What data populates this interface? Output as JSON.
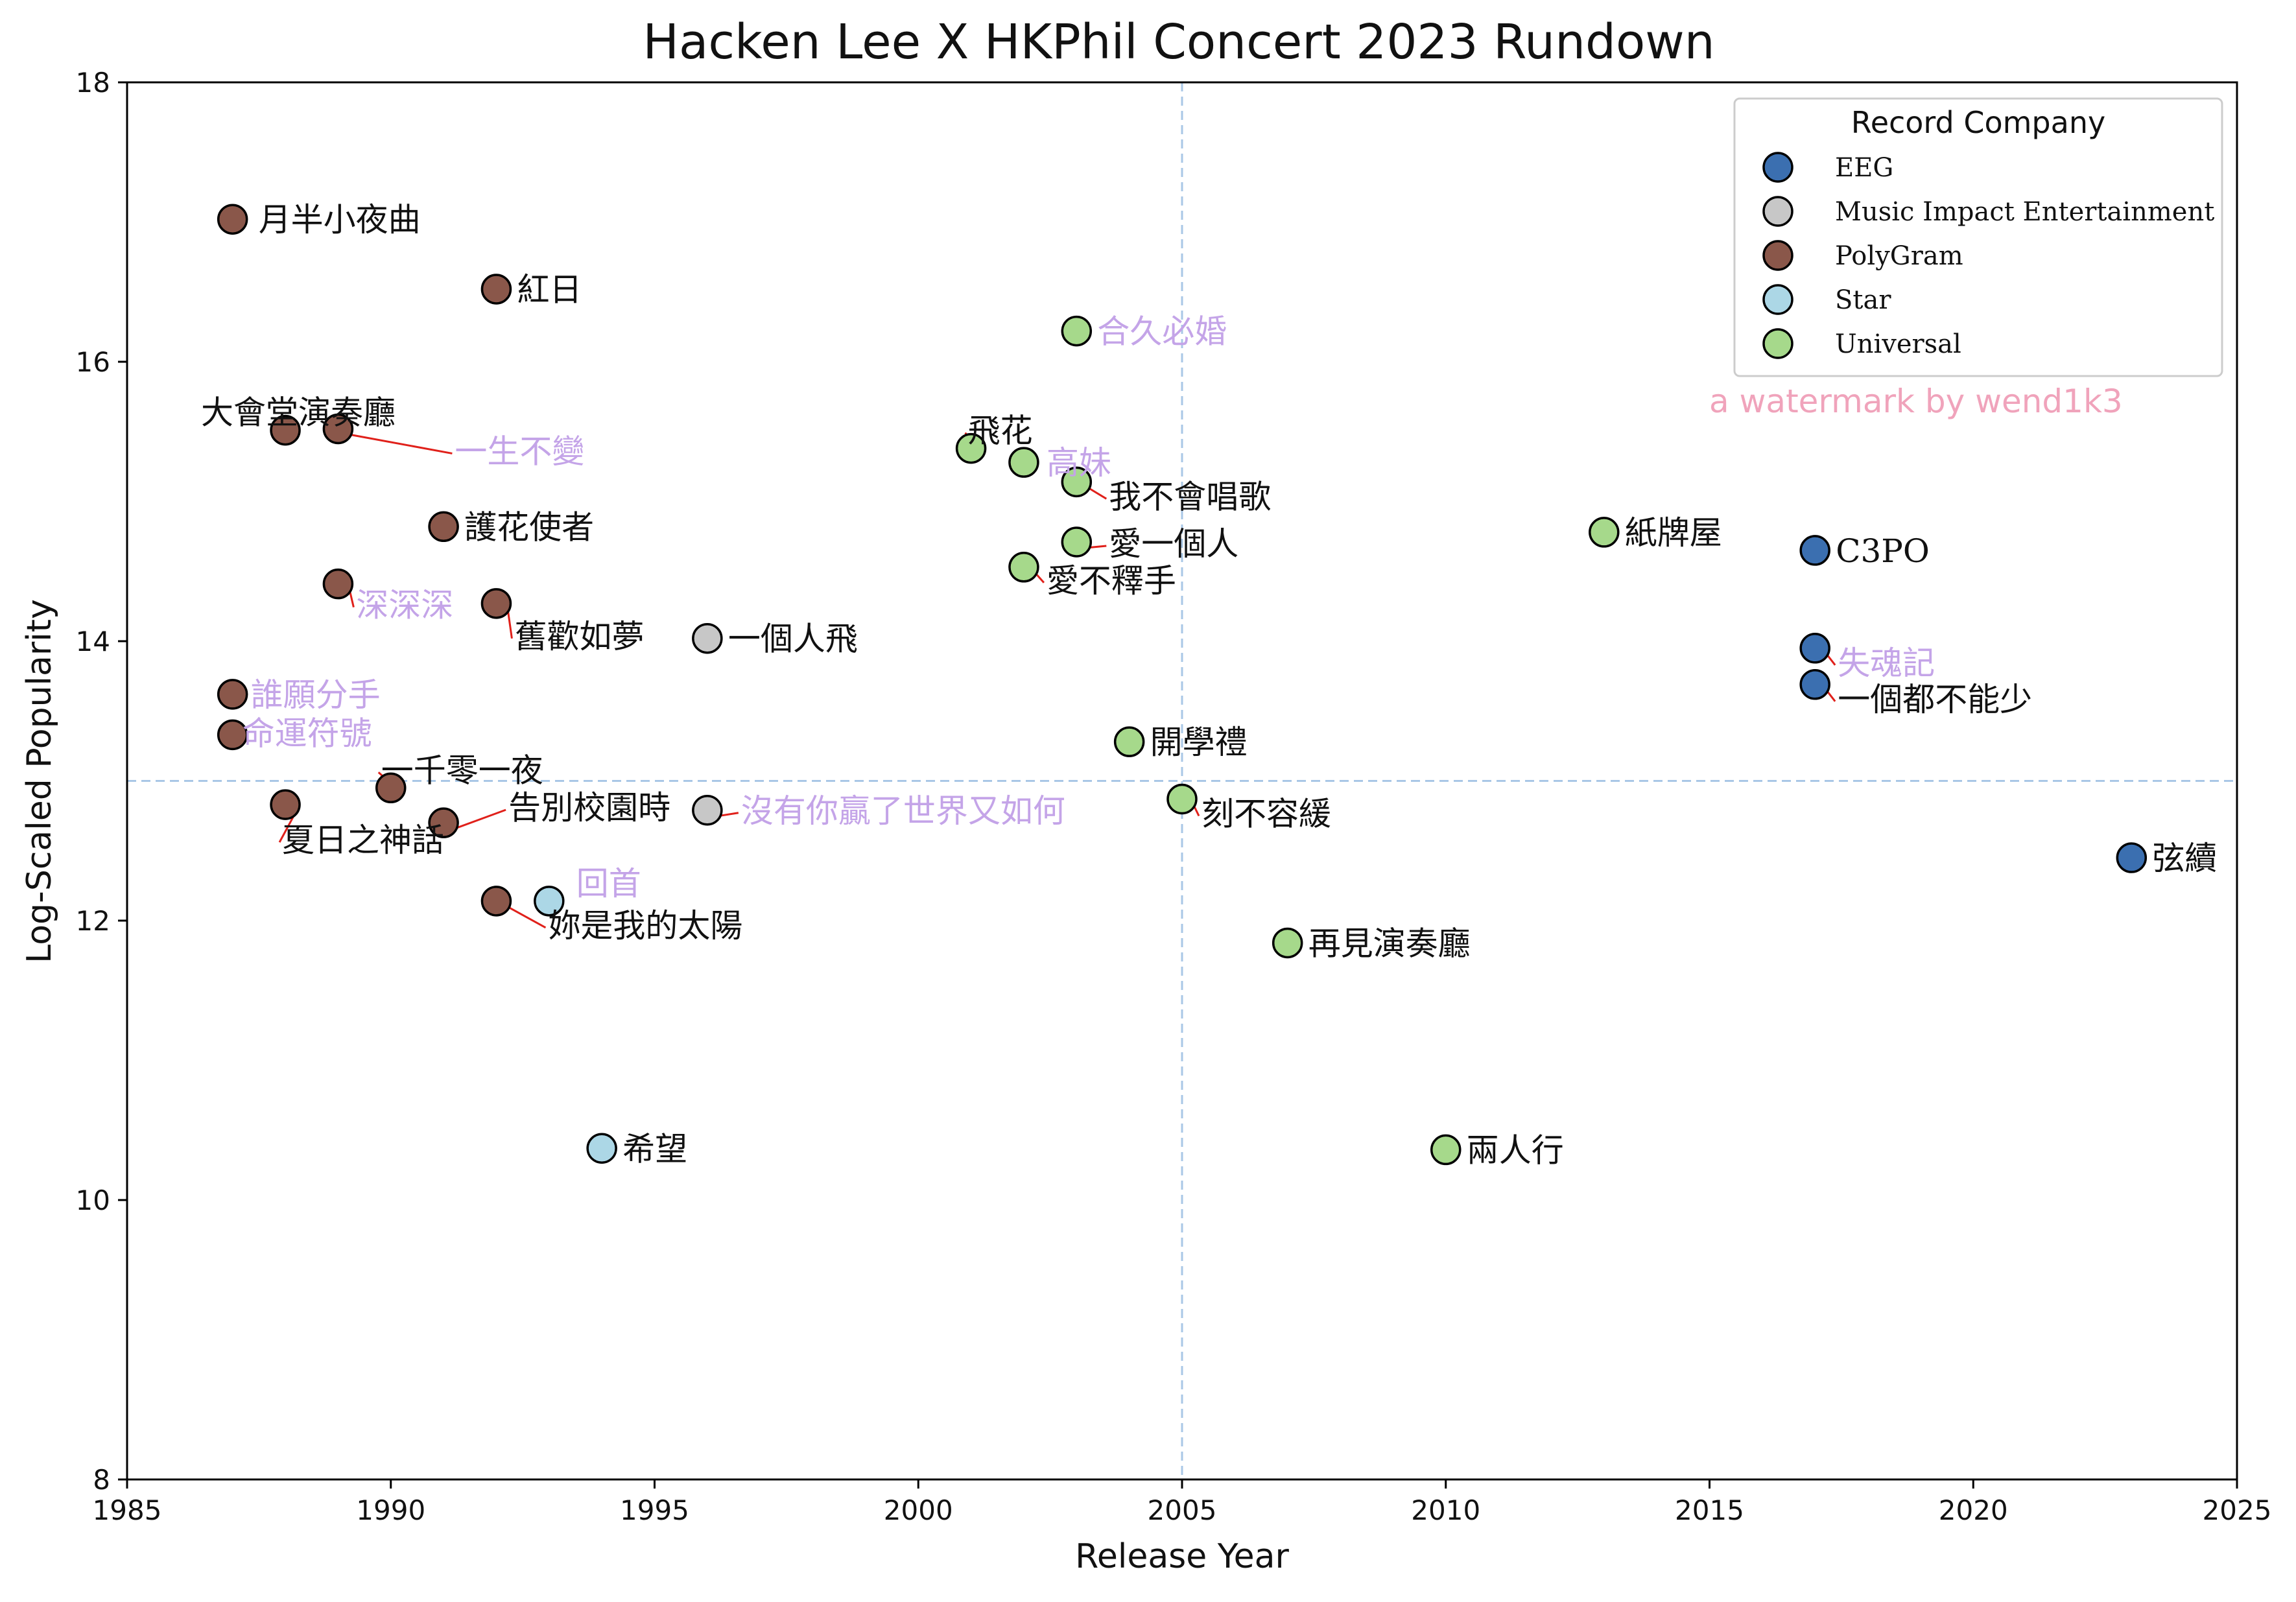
{
  "chart_data": {
    "type": "scatter",
    "title": "Hacken Lee X HKPhil Concert 2023 Rundown",
    "xlabel": "Release Year",
    "ylabel": "Log-Scaled Popularity",
    "xlim": [
      1985,
      2025
    ],
    "ylim": [
      8,
      18
    ],
    "xticks": [
      "1985",
      "1990",
      "1995",
      "2000",
      "2005",
      "2010",
      "2015",
      "2020",
      "2025"
    ],
    "yticks": [
      "8",
      "10",
      "12",
      "14",
      "16",
      "18"
    ],
    "reference_lines": {
      "x": 2005,
      "y": 13
    },
    "grid": false,
    "legend": {
      "title": "Record Company",
      "placement": "top-right",
      "entries": [
        "EEG",
        "Music Impact Entertainment",
        "PolyGram",
        "Star",
        "Universal"
      ]
    },
    "colors": {
      "EEG": "#3b6fb0",
      "Music Impact Entertainment": "#c7c7c7",
      "PolyGram": "#8a574a",
      "Star": "#acd7e6",
      "Universal": "#a6d98b",
      "label_default": "#111111",
      "label_highlight": "#c4a4e8",
      "connector": "#e0201a",
      "reference_line": "#a9c7e6",
      "watermark": "#f0a3bb"
    },
    "points": [
      {
        "song": "月半小夜曲",
        "year": 1987,
        "popularity": 17.02,
        "company": "PolyGram",
        "highlight": false
      },
      {
        "song": "紅日",
        "year": 1992,
        "popularity": 16.52,
        "company": "PolyGram",
        "highlight": false
      },
      {
        "song": "大會堂演奏廳",
        "year": 1988,
        "popularity": 15.51,
        "company": "PolyGram",
        "highlight": false
      },
      {
        "song": "一生不變",
        "year": 1989,
        "popularity": 15.52,
        "company": "PolyGram",
        "highlight": true
      },
      {
        "song": "護花使者",
        "year": 1991,
        "popularity": 14.82,
        "company": "PolyGram",
        "highlight": false
      },
      {
        "song": "深深深",
        "year": 1989,
        "popularity": 14.41,
        "company": "PolyGram",
        "highlight": true
      },
      {
        "song": "舊歡如夢",
        "year": 1992,
        "popularity": 14.27,
        "company": "PolyGram",
        "highlight": false
      },
      {
        "song": "誰願分手",
        "year": 1987,
        "popularity": 13.62,
        "company": "PolyGram",
        "highlight": true
      },
      {
        "song": "命運符號",
        "year": 1987,
        "popularity": 13.33,
        "company": "PolyGram",
        "highlight": true
      },
      {
        "song": "一千零一夜",
        "year": 1990,
        "popularity": 12.95,
        "company": "PolyGram",
        "highlight": false
      },
      {
        "song": "夏日之神話",
        "year": 1988,
        "popularity": 12.83,
        "company": "PolyGram",
        "highlight": false
      },
      {
        "song": "告別校園時",
        "year": 1991,
        "popularity": 12.7,
        "company": "PolyGram",
        "highlight": false
      },
      {
        "song": "妳是我的太陽",
        "year": 1992,
        "popularity": 12.14,
        "company": "PolyGram",
        "highlight": false
      },
      {
        "song": "回首",
        "year": 1993,
        "popularity": 12.14,
        "company": "Star",
        "highlight": true
      },
      {
        "song": "希望",
        "year": 1994,
        "popularity": 10.37,
        "company": "Star",
        "highlight": false
      },
      {
        "song": "一個人飛",
        "year": 1996,
        "popularity": 14.02,
        "company": "Music Impact Entertainment",
        "highlight": false
      },
      {
        "song": "沒有你贏了世界又如何",
        "year": 1996,
        "popularity": 12.79,
        "company": "Music Impact Entertainment",
        "highlight": true
      },
      {
        "song": "飛花",
        "year": 2001,
        "popularity": 15.38,
        "company": "Universal",
        "highlight": false
      },
      {
        "song": "高妹",
        "year": 2002,
        "popularity": 15.28,
        "company": "Universal",
        "highlight": true
      },
      {
        "song": "合久必婚",
        "year": 2003,
        "popularity": 16.22,
        "company": "Universal",
        "highlight": true
      },
      {
        "song": "我不會唱歌",
        "year": 2003,
        "popularity": 15.14,
        "company": "Universal",
        "highlight": false
      },
      {
        "song": "愛一個人",
        "year": 2003,
        "popularity": 14.71,
        "company": "Universal",
        "highlight": false
      },
      {
        "song": "愛不釋手",
        "year": 2002,
        "popularity": 14.53,
        "company": "Universal",
        "highlight": false
      },
      {
        "song": "開學禮",
        "year": 2004,
        "popularity": 13.28,
        "company": "Universal",
        "highlight": false
      },
      {
        "song": "刻不容緩",
        "year": 2005,
        "popularity": 12.87,
        "company": "Universal",
        "highlight": false
      },
      {
        "song": "再見演奏廳",
        "year": 2007,
        "popularity": 11.84,
        "company": "Universal",
        "highlight": false
      },
      {
        "song": "紙牌屋",
        "year": 2013,
        "popularity": 14.78,
        "company": "Universal",
        "highlight": false
      },
      {
        "song": "兩人行",
        "year": 2010,
        "popularity": 10.36,
        "company": "Universal",
        "highlight": false
      },
      {
        "song": "C3PO",
        "year": 2017,
        "popularity": 14.65,
        "company": "EEG",
        "highlight": false
      },
      {
        "song": "失魂記",
        "year": 2017,
        "popularity": 13.95,
        "company": "EEG",
        "highlight": true
      },
      {
        "song": "一個都不能少",
        "year": 2017,
        "popularity": 13.69,
        "company": "EEG",
        "highlight": false
      },
      {
        "song": "弦續",
        "year": 2023,
        "popularity": 12.45,
        "company": "EEG",
        "highlight": false
      }
    ],
    "annotations": [
      "a watermark by wend1k3"
    ]
  }
}
